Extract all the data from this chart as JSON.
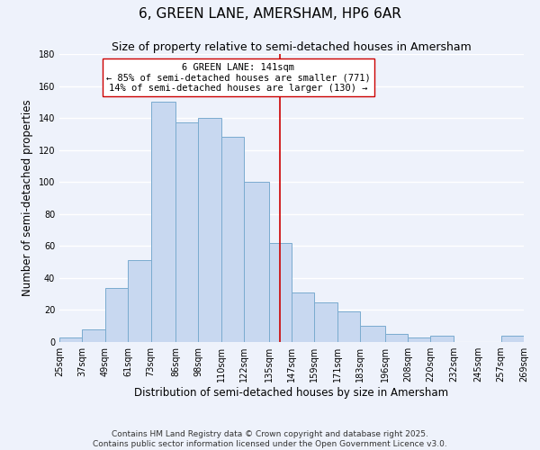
{
  "title": "6, GREEN LANE, AMERSHAM, HP6 6AR",
  "subtitle": "Size of property relative to semi-detached houses in Amersham",
  "xlabel": "Distribution of semi-detached houses by size in Amersham",
  "ylabel": "Number of semi-detached properties",
  "footer_lines": [
    "Contains HM Land Registry data © Crown copyright and database right 2025.",
    "Contains public sector information licensed under the Open Government Licence v3.0."
  ],
  "bin_edges": [
    25,
    37,
    49,
    61,
    73,
    86,
    98,
    110,
    122,
    135,
    147,
    159,
    171,
    183,
    196,
    208,
    220,
    232,
    245,
    257,
    269
  ],
  "bin_counts": [
    3,
    8,
    34,
    51,
    150,
    137,
    140,
    128,
    100,
    62,
    31,
    25,
    19,
    10,
    5,
    3,
    4,
    0,
    0,
    4
  ],
  "bar_color": "#c8d8f0",
  "bar_edgecolor": "#7aabcf",
  "property_size": 141,
  "property_label": "6 GREEN LANE: 141sqm",
  "pct_smaller": 85,
  "n_smaller": 771,
  "pct_larger": 14,
  "n_larger": 130,
  "vline_color": "#cc0000",
  "annotation_box_edgecolor": "#cc0000",
  "ylim": [
    0,
    180
  ],
  "yticks": [
    0,
    20,
    40,
    60,
    80,
    100,
    120,
    140,
    160,
    180
  ],
  "tick_labels": [
    "25sqm",
    "37sqm",
    "49sqm",
    "61sqm",
    "73sqm",
    "86sqm",
    "98sqm",
    "110sqm",
    "122sqm",
    "135sqm",
    "147sqm",
    "159sqm",
    "171sqm",
    "183sqm",
    "196sqm",
    "208sqm",
    "220sqm",
    "232sqm",
    "245sqm",
    "257sqm",
    "269sqm"
  ],
  "background_color": "#eef2fb",
  "grid_color": "#ffffff",
  "title_fontsize": 11,
  "subtitle_fontsize": 9,
  "axis_label_fontsize": 8.5,
  "tick_fontsize": 7,
  "footer_fontsize": 6.5,
  "annot_fontsize": 7.5
}
